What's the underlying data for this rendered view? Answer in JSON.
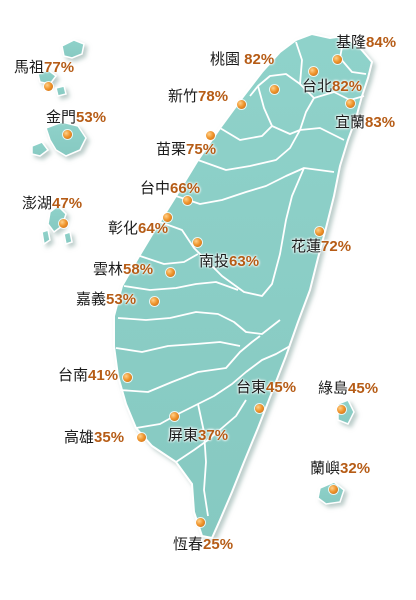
{
  "map": {
    "colors": {
      "land": "#8fd0c8",
      "land_shadow": "#b7cfcc",
      "border": "#ffffff",
      "label_value": "#b65c16",
      "marker": "#f0962e"
    },
    "regions": [
      {
        "id": "mazu",
        "name": "馬祖",
        "value": "77%",
        "name_bind": "map.regions.0.name",
        "value_bind": "map.regions.0.value"
      },
      {
        "id": "kinmen",
        "name": "金門",
        "value": "53%"
      },
      {
        "id": "penghu",
        "name": "澎湖",
        "value": "47%"
      },
      {
        "id": "taoyuan",
        "name": "桃園",
        "value": " 82%"
      },
      {
        "id": "keelung",
        "name": "基隆",
        "value": "84%"
      },
      {
        "id": "taipei",
        "name": "台北",
        "value": "82%"
      },
      {
        "id": "hsinchu",
        "name": "新竹",
        "value": "78%"
      },
      {
        "id": "yilan",
        "name": "宜蘭",
        "value": "83%"
      },
      {
        "id": "miaoli",
        "name": "苗栗",
        "value": "75%"
      },
      {
        "id": "taichung",
        "name": "台中",
        "value": "66%"
      },
      {
        "id": "changhua",
        "name": "彰化",
        "value": "64%"
      },
      {
        "id": "nantou",
        "name": "南投",
        "value": "63%"
      },
      {
        "id": "hualien",
        "name": "花蓮",
        "value": "72%"
      },
      {
        "id": "yunlin",
        "name": "雲林",
        "value": "58%"
      },
      {
        "id": "chiayi",
        "name": "嘉義",
        "value": "53%"
      },
      {
        "id": "tainan",
        "name": "台南",
        "value": "41%"
      },
      {
        "id": "taitung",
        "name": "台東",
        "value": "45%"
      },
      {
        "id": "greenisland",
        "name": "綠島",
        "value": "45%"
      },
      {
        "id": "kaohsiung",
        "name": "高雄",
        "value": "35%"
      },
      {
        "id": "pingtung",
        "name": "屏東",
        "value": "37%"
      },
      {
        "id": "orchid",
        "name": "蘭嶼",
        "value": "32%"
      },
      {
        "id": "hengchun",
        "name": "恆春",
        "value": "25%"
      }
    ]
  }
}
